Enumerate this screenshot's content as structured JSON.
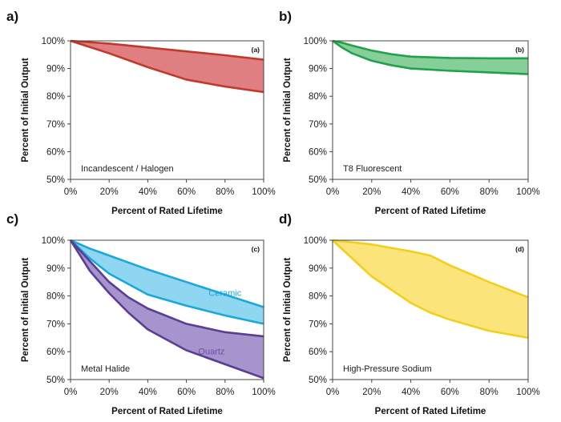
{
  "chart_data": [
    {
      "type": "area",
      "panel_letter": "a)",
      "tag": "(a)",
      "caption": "Incandescent / Halogen",
      "xlabel": "Percent of Rated Lifetime",
      "ylabel": "Percent of Initial Output",
      "xlim": [
        0,
        100
      ],
      "ylim": [
        50,
        100
      ],
      "xticks": [
        "0%",
        "20%",
        "40%",
        "60%",
        "80%",
        "100%"
      ],
      "yticks": [
        "50%",
        "60%",
        "70%",
        "80%",
        "90%",
        "100%"
      ],
      "grid": false,
      "series": [
        {
          "name": "",
          "color": "#c0392b",
          "fill": "#df7f82",
          "label_color": "#c0392b",
          "x": [
            0,
            20,
            40,
            60,
            80,
            100
          ],
          "upper": [
            100,
            99.0,
            97.6,
            96.2,
            94.8,
            93.2
          ],
          "lower": [
            100,
            95.5,
            90.5,
            86.0,
            83.5,
            81.5
          ]
        }
      ]
    },
    {
      "type": "area",
      "panel_letter": "b)",
      "tag": "(b)",
      "caption": "T8 Fluorescent",
      "xlabel": "Percent of Rated Lifetime",
      "ylabel": "Percent of Initial Output",
      "xlim": [
        0,
        100
      ],
      "ylim": [
        50,
        100
      ],
      "xticks": [
        "0%",
        "20%",
        "40%",
        "60%",
        "80%",
        "100%"
      ],
      "yticks": [
        "50%",
        "60%",
        "70%",
        "80%",
        "90%",
        "100%"
      ],
      "grid": false,
      "series": [
        {
          "name": "",
          "color": "#22a04b",
          "fill": "#86cf98",
          "label_color": "#22a04b",
          "x": [
            0,
            5,
            10,
            20,
            30,
            40,
            60,
            80,
            100
          ],
          "upper": [
            100,
            99.3,
            98.3,
            96.5,
            95.2,
            94.3,
            93.8,
            93.7,
            93.7
          ],
          "lower": [
            100,
            97.5,
            95.5,
            92.8,
            91.2,
            90.0,
            89.2,
            88.6,
            88.0
          ]
        }
      ]
    },
    {
      "type": "area",
      "panel_letter": "c)",
      "tag": "(c)",
      "caption": "Metal Halide",
      "xlabel": "Percent of Rated Lifetime",
      "ylabel": "Percent of Initial Output",
      "xlim": [
        0,
        100
      ],
      "ylim": [
        50,
        100
      ],
      "xticks": [
        "0%",
        "20%",
        "40%",
        "60%",
        "80%",
        "100%"
      ],
      "yticks": [
        "50%",
        "60%",
        "70%",
        "80%",
        "90%",
        "100%"
      ],
      "grid": false,
      "series": [
        {
          "name": "Ceramic",
          "color": "#1aa7dc",
          "fill": "#8fd6f1",
          "label_color": "#1aa7dc",
          "x": [
            0,
            10,
            20,
            40,
            60,
            80,
            100
          ],
          "upper": [
            100,
            97.0,
            94.5,
            89.5,
            85.0,
            80.5,
            76.0
          ],
          "lower": [
            100,
            93.5,
            88.0,
            80.5,
            76.5,
            73.0,
            70.0
          ]
        },
        {
          "name": "Quartz",
          "color": "#5a3d94",
          "fill": "#a894cc",
          "label_color": "#6a4ea8",
          "x": [
            0,
            10,
            20,
            30,
            40,
            60,
            80,
            100
          ],
          "upper": [
            100,
            92.5,
            85.0,
            79.5,
            75.5,
            70.0,
            67.0,
            65.5
          ],
          "lower": [
            100,
            89.0,
            81.0,
            74.0,
            68.0,
            60.5,
            55.5,
            50.5
          ]
        }
      ]
    },
    {
      "type": "area",
      "panel_letter": "d)",
      "tag": "(d)",
      "caption": "High-Pressure Sodium",
      "xlabel": "Percent of Rated Lifetime",
      "ylabel": "Percent of Initial Output",
      "xlim": [
        0,
        100
      ],
      "ylim": [
        50,
        100
      ],
      "xticks": [
        "0%",
        "20%",
        "40%",
        "60%",
        "80%",
        "100%"
      ],
      "yticks": [
        "50%",
        "60%",
        "70%",
        "80%",
        "90%",
        "100%"
      ],
      "grid": false,
      "series": [
        {
          "name": "",
          "color": "#f2cf1e",
          "fill": "#fbe57b",
          "label_color": "#f2cf1e",
          "x": [
            0,
            20,
            40,
            50,
            60,
            80,
            100
          ],
          "upper": [
            100,
            98.5,
            96.0,
            94.5,
            91.0,
            85.0,
            79.5
          ],
          "lower": [
            100,
            87.0,
            77.5,
            74.0,
            71.5,
            67.5,
            65.0
          ]
        }
      ]
    }
  ]
}
